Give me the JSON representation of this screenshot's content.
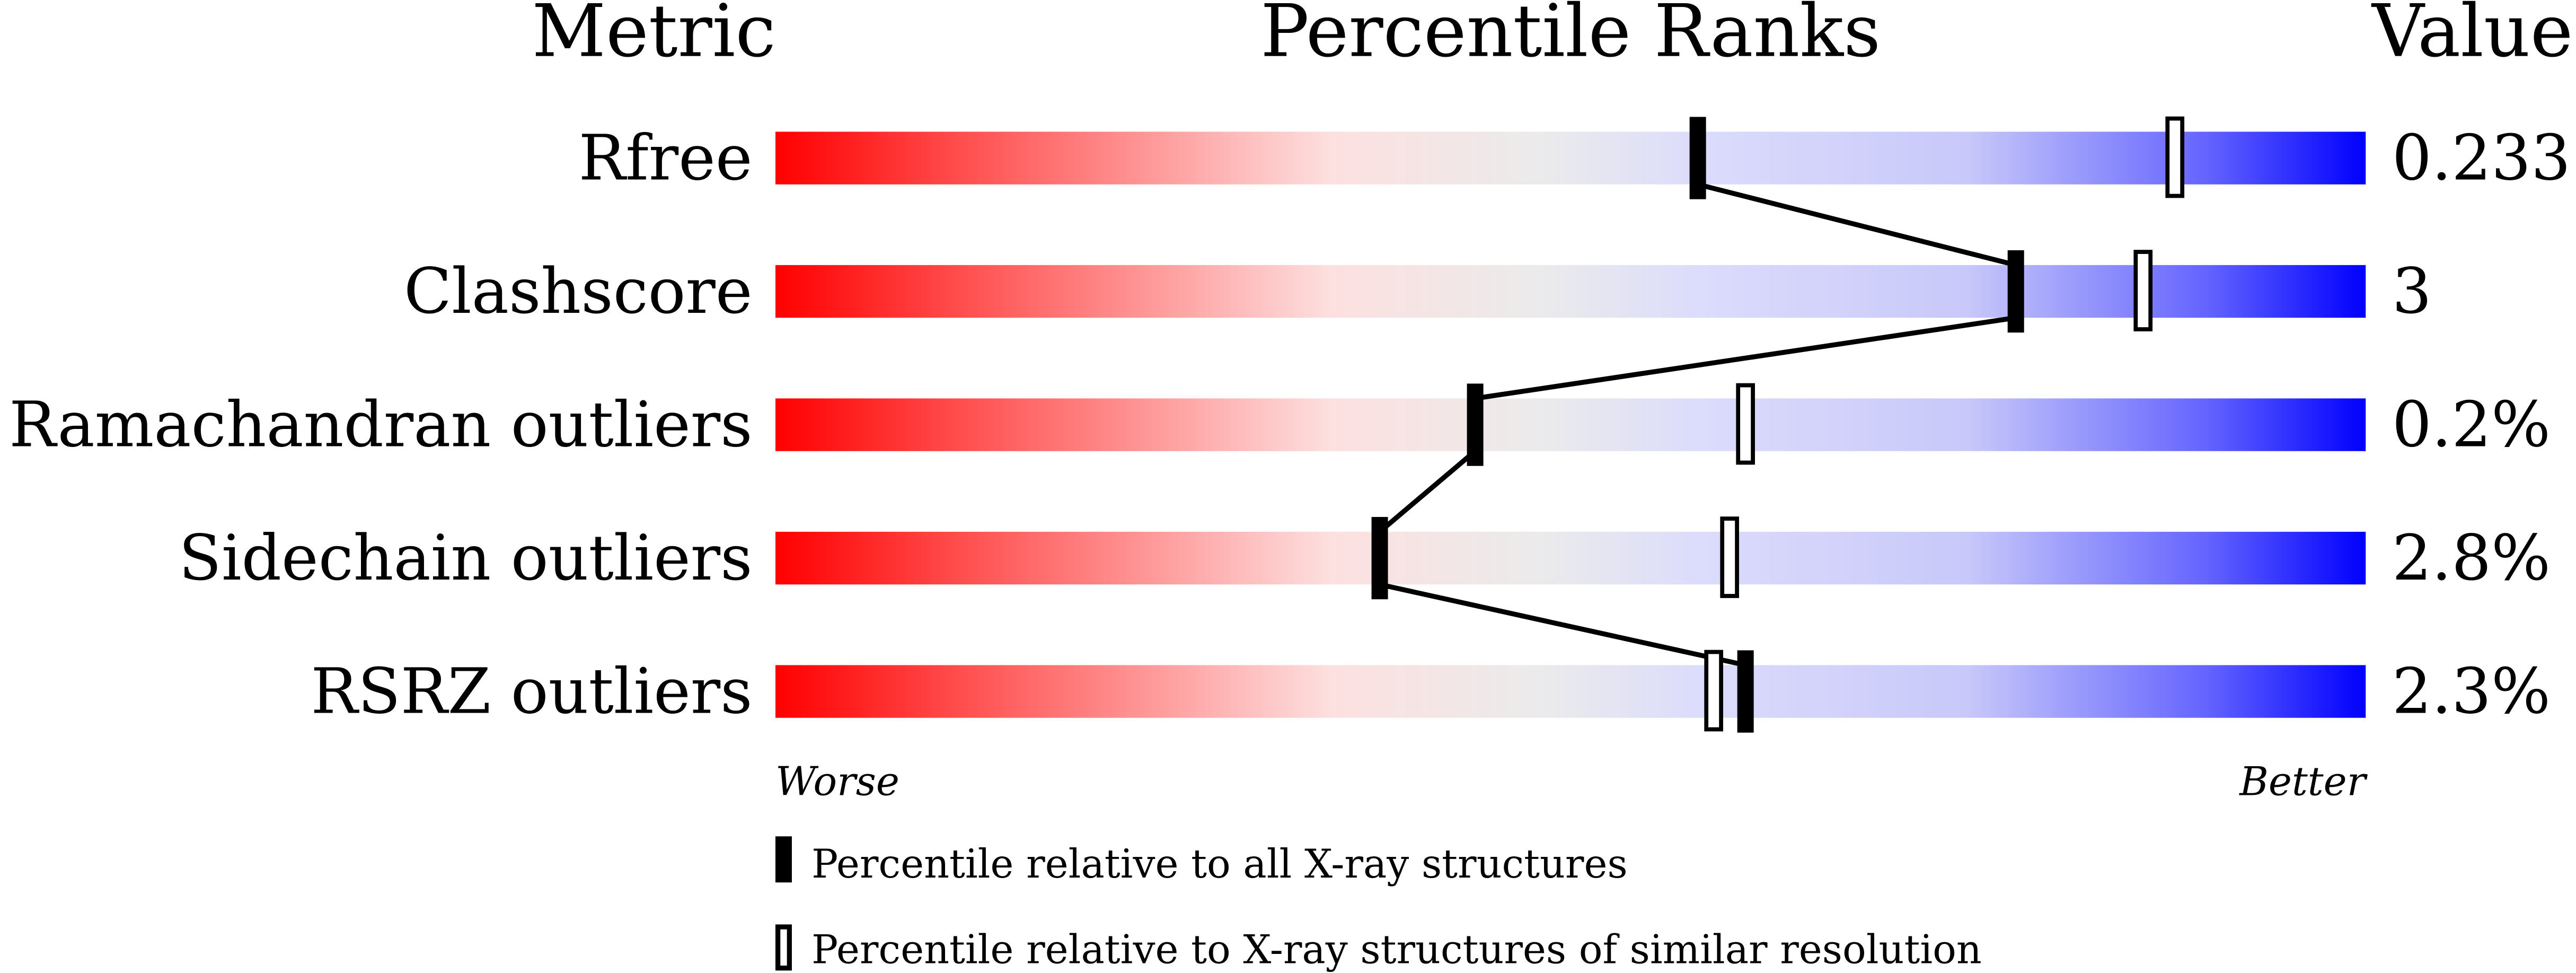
{
  "chart_data": {
    "type": "percentile-slider",
    "headers": {
      "metric": "Metric",
      "ranks": "Percentile Ranks",
      "value": "Value"
    },
    "xlim": [
      0,
      100
    ],
    "ends": {
      "worse": "Worse",
      "better": "Better"
    },
    "gradient_colors": [
      "#ff0000",
      "#fde0e0",
      "#ebebeb",
      "#dcdcfc",
      "#0000ff"
    ],
    "rows": [
      {
        "metric": "Rfree",
        "value": "0.233",
        "percentile_all": 58,
        "percentile_similar": 88
      },
      {
        "metric": "Clashscore",
        "value": "3",
        "percentile_all": 78,
        "percentile_similar": 86
      },
      {
        "metric": "Ramachandran outliers",
        "value": "0.2%",
        "percentile_all": 44,
        "percentile_similar": 61
      },
      {
        "metric": "Sidechain outliers",
        "value": "2.8%",
        "percentile_all": 38,
        "percentile_similar": 60
      },
      {
        "metric": "RSRZ outliers",
        "value": "2.3%",
        "percentile_all": 61,
        "percentile_similar": 59
      }
    ],
    "legend": {
      "all": "Percentile relative to all X-ray structures",
      "similar": "Percentile relative to X-ray structures of similar resolution"
    }
  }
}
